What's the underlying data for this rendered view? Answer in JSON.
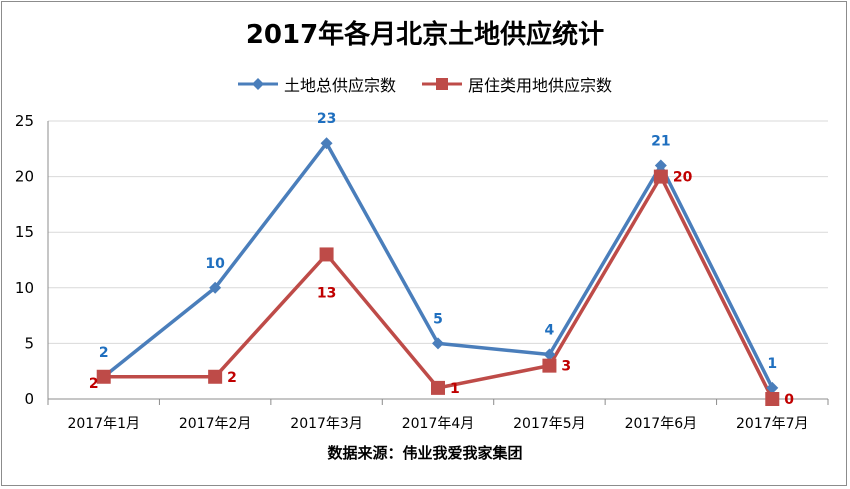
{
  "chart_data": {
    "type": "line",
    "title": "2017年各月北京土地供应统计",
    "categories": [
      "2017年1月",
      "2017年2月",
      "2017年3月",
      "2017年4月",
      "2017年5月",
      "2017年6月",
      "2017年7月"
    ],
    "series": [
      {
        "name": "土地总供应宗数",
        "color": "#4a7ebb",
        "marker": "diamond",
        "label_color": "#1f6fbf",
        "values": [
          2,
          10,
          23,
          5,
          4,
          21,
          1
        ]
      },
      {
        "name": "居住类用地供应宗数",
        "color": "#be4b48",
        "marker": "square",
        "label_color": "#c00000",
        "values": [
          2,
          2,
          13,
          1,
          3,
          20,
          0
        ]
      }
    ],
    "ylim": [
      0,
      25
    ],
    "yticks": [
      0,
      5,
      10,
      15,
      20,
      25
    ],
    "grid": true,
    "legend": "top",
    "source": "数据来源：伟业我爱我家集团"
  }
}
